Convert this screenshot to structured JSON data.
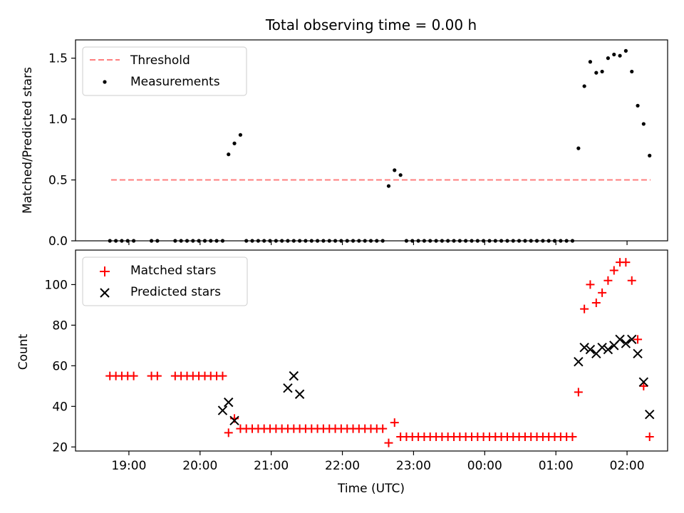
{
  "chart_data": [
    {
      "type": "scatter",
      "title": "Total observing time = 0.00 h",
      "xlabel": "",
      "ylabel": "Matched/Predicted stars",
      "xlim": [
        -0.75,
        7.57
      ],
      "ylim": [
        0,
        1.65
      ],
      "yticks": [
        0.0,
        0.5,
        1.0,
        1.5
      ],
      "ytick_labels": [
        "0.0",
        "0.5",
        "1.0",
        "1.5"
      ],
      "legend_position": "top-left",
      "threshold": {
        "name": "Threshold",
        "value": 0.5,
        "x_range": [
          -0.25,
          7.33
        ],
        "color": "#ff7f7f",
        "style": "dashed"
      },
      "series": [
        {
          "name": "Measurements",
          "color": "#000000",
          "marker": "dot",
          "x": [
            -0.267,
            -0.183,
            -0.1,
            -0.017,
            0.067,
            0.317,
            0.4,
            0.65,
            0.733,
            0.817,
            0.9,
            0.983,
            1.067,
            1.15,
            1.233,
            1.317,
            1.4,
            1.483,
            1.567,
            1.65,
            1.733,
            1.817,
            1.9,
            1.983,
            2.067,
            2.15,
            2.233,
            2.317,
            2.4,
            2.483,
            2.567,
            2.65,
            2.733,
            2.817,
            2.9,
            2.983,
            3.067,
            3.15,
            3.233,
            3.317,
            3.4,
            3.483,
            3.567,
            3.65,
            3.733,
            3.817,
            3.9,
            3.983,
            4.067,
            4.15,
            4.233,
            4.317,
            4.4,
            4.483,
            4.567,
            4.65,
            4.733,
            4.817,
            4.9,
            4.983,
            5.067,
            5.15,
            5.233,
            5.317,
            5.4,
            5.483,
            5.567,
            5.65,
            5.733,
            5.817,
            5.9,
            5.983,
            6.067,
            6.15,
            6.233,
            6.317,
            6.4,
            6.483,
            6.567,
            6.65,
            6.733,
            6.817,
            6.9,
            6.983,
            7.067,
            7.15,
            7.233,
            7.317
          ],
          "y": [
            0,
            0,
            0,
            0,
            0,
            0,
            0,
            0,
            0,
            0,
            0,
            0,
            0,
            0,
            0,
            0,
            0.71,
            0.8,
            0.87,
            0,
            0,
            0,
            0,
            0,
            0,
            0,
            0,
            0,
            0,
            0,
            0,
            0,
            0,
            0,
            0,
            0,
            0,
            0,
            0,
            0,
            0,
            0,
            0,
            0.45,
            0.58,
            0.54,
            0,
            0,
            0,
            0,
            0,
            0,
            0,
            0,
            0,
            0,
            0,
            0,
            0,
            0,
            0,
            0,
            0,
            0,
            0,
            0,
            0,
            0,
            0,
            0,
            0,
            0,
            0,
            0,
            0,
            0.76,
            1.27,
            1.47,
            1.38,
            1.39,
            1.5,
            1.53,
            1.52,
            1.56,
            1.39,
            1.11,
            0.96,
            0.7
          ]
        }
      ]
    },
    {
      "type": "scatter",
      "title": "",
      "xlabel": "Time (UTC)",
      "ylabel": "Count",
      "xlim": [
        -0.75,
        7.57
      ],
      "ylim": [
        18,
        117
      ],
      "yticks": [
        20,
        40,
        60,
        80,
        100
      ],
      "ytick_labels": [
        "20",
        "40",
        "60",
        "80",
        "100"
      ],
      "xticks": [
        0,
        1,
        2,
        3,
        4,
        5,
        6,
        7
      ],
      "xtick_labels": [
        "19:00",
        "20:00",
        "21:00",
        "22:00",
        "23:00",
        "00:00",
        "01:00",
        "02:00"
      ],
      "legend_position": "top-left",
      "series": [
        {
          "name": "Matched stars",
          "color": "#ff0000",
          "marker": "plus",
          "x": [
            -0.267,
            -0.183,
            -0.1,
            -0.017,
            0.067,
            0.317,
            0.4,
            0.65,
            0.733,
            0.817,
            0.9,
            0.983,
            1.067,
            1.15,
            1.233,
            1.317,
            1.4,
            1.483,
            1.567,
            1.65,
            1.733,
            1.817,
            1.9,
            1.983,
            2.067,
            2.15,
            2.233,
            2.317,
            2.4,
            2.483,
            2.567,
            2.65,
            2.733,
            2.817,
            2.9,
            2.983,
            3.067,
            3.15,
            3.233,
            3.317,
            3.4,
            3.483,
            3.567,
            3.65,
            3.733,
            3.817,
            3.9,
            3.983,
            4.067,
            4.15,
            4.233,
            4.317,
            4.4,
            4.483,
            4.567,
            4.65,
            4.733,
            4.817,
            4.9,
            4.983,
            5.067,
            5.15,
            5.233,
            5.317,
            5.4,
            5.483,
            5.567,
            5.65,
            5.733,
            5.817,
            5.9,
            5.983,
            6.067,
            6.15,
            6.233,
            6.317,
            6.4,
            6.483,
            6.567,
            6.65,
            6.733,
            6.817,
            6.9,
            6.983,
            7.067,
            7.15,
            7.233,
            7.317
          ],
          "y": [
            55,
            55,
            55,
            55,
            55,
            55,
            55,
            55,
            55,
            55,
            55,
            55,
            55,
            55,
            55,
            55,
            27,
            34,
            29,
            29,
            29,
            29,
            29,
            29,
            29,
            29,
            29,
            29,
            29,
            29,
            29,
            29,
            29,
            29,
            29,
            29,
            29,
            29,
            29,
            29,
            29,
            29,
            29,
            22,
            32,
            25,
            25,
            25,
            25,
            25,
            25,
            25,
            25,
            25,
            25,
            25,
            25,
            25,
            25,
            25,
            25,
            25,
            25,
            25,
            25,
            25,
            25,
            25,
            25,
            25,
            25,
            25,
            25,
            25,
            25,
            47,
            88,
            100,
            91,
            96,
            102,
            107,
            111,
            111,
            102,
            73,
            50,
            25
          ]
        },
        {
          "name": "Predicted stars",
          "color": "#000000",
          "marker": "x",
          "x": [
            1.317,
            1.4,
            1.483,
            2.233,
            2.317,
            2.4,
            6.317,
            6.4,
            6.483,
            6.567,
            6.65,
            6.733,
            6.817,
            6.9,
            6.983,
            7.067,
            7.15,
            7.233,
            7.317
          ],
          "y": [
            38,
            42,
            33,
            49,
            55,
            46,
            62,
            69,
            68,
            66,
            69,
            68,
            70,
            73,
            71,
            73,
            66,
            52,
            36
          ]
        }
      ]
    }
  ]
}
